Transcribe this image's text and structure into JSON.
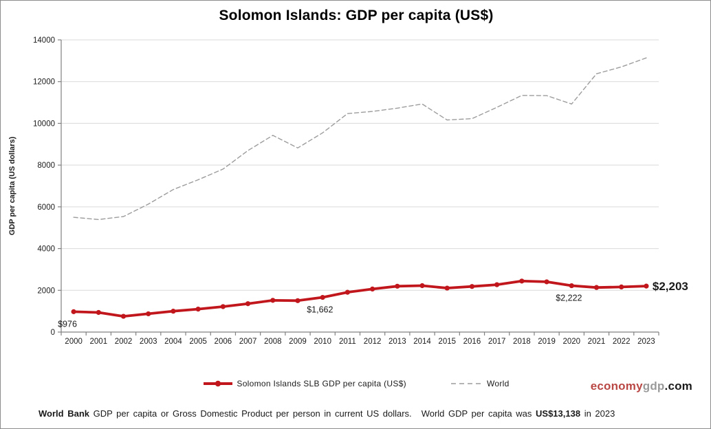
{
  "title": "Solomon Islands: GDP per capita (US$)",
  "chart_data": {
    "type": "line",
    "title": "Solomon Islands: GDP per capita (US$)",
    "xlabel": "",
    "ylabel": "GDP per capita (US dollars)",
    "ylim": [
      0,
      14000
    ],
    "ytick_step": 2000,
    "grid": "horizontal",
    "legend_position": "bottom",
    "x": [
      2000,
      2001,
      2002,
      2003,
      2004,
      2005,
      2006,
      2007,
      2008,
      2009,
      2010,
      2011,
      2012,
      2013,
      2014,
      2015,
      2016,
      2017,
      2018,
      2019,
      2020,
      2021,
      2022,
      2023
    ],
    "series": [
      {
        "name": "Solomon Islands SLB GDP per capita (US$)",
        "color": "#c0161c",
        "style": "solid",
        "markers": true,
        "values": [
          976,
          940,
          755,
          875,
          1000,
          1100,
          1220,
          1360,
          1520,
          1505,
          1662,
          1906,
          2062,
          2196,
          2223,
          2107,
          2185,
          2270,
          2443,
          2407,
          2222,
          2136,
          2161,
          2203
        ]
      },
      {
        "name": "World",
        "color": "#9c9c9c",
        "style": "dashed",
        "markers": false,
        "values": [
          5499,
          5394,
          5534,
          6132,
          6830,
          7297,
          7811,
          8695,
          9424,
          8822,
          9545,
          10469,
          10572,
          10728,
          10925,
          10163,
          10225,
          10770,
          11337,
          11327,
          10926,
          12377,
          12704,
          13138
        ]
      }
    ],
    "annotations": [
      {
        "year": 2000,
        "label": "$976",
        "position": "below-left",
        "bold": false
      },
      {
        "year": 2010,
        "label": "$1,662",
        "position": "below-left",
        "bold": false
      },
      {
        "year": 2020,
        "label": "$2,222",
        "position": "below-left",
        "bold": false
      },
      {
        "year": 2023,
        "label": "$2,203",
        "position": "end-right",
        "bold": true
      }
    ]
  },
  "legend": {
    "items": [
      {
        "label": "Solomon Islands SLB GDP per capita (US$)"
      },
      {
        "label": "World"
      }
    ]
  },
  "logo": {
    "part1": "economy",
    "part2": "gdp",
    "part3": ".com"
  },
  "footer": {
    "bold1": "World Bank",
    "text1": "GDP per capita or Gross Domestic Product per person in current US dollars.",
    "text2": "World GDP per capita was",
    "bold2": "US$13,138",
    "text3": "in 2023"
  },
  "colors": {
    "series_main": "#c0161c",
    "series_world": "#9c9c9c",
    "gridline": "#d9d9d9",
    "axis": "#808080",
    "logo_red": "#b94743",
    "logo_gray": "#9a9a9a"
  }
}
